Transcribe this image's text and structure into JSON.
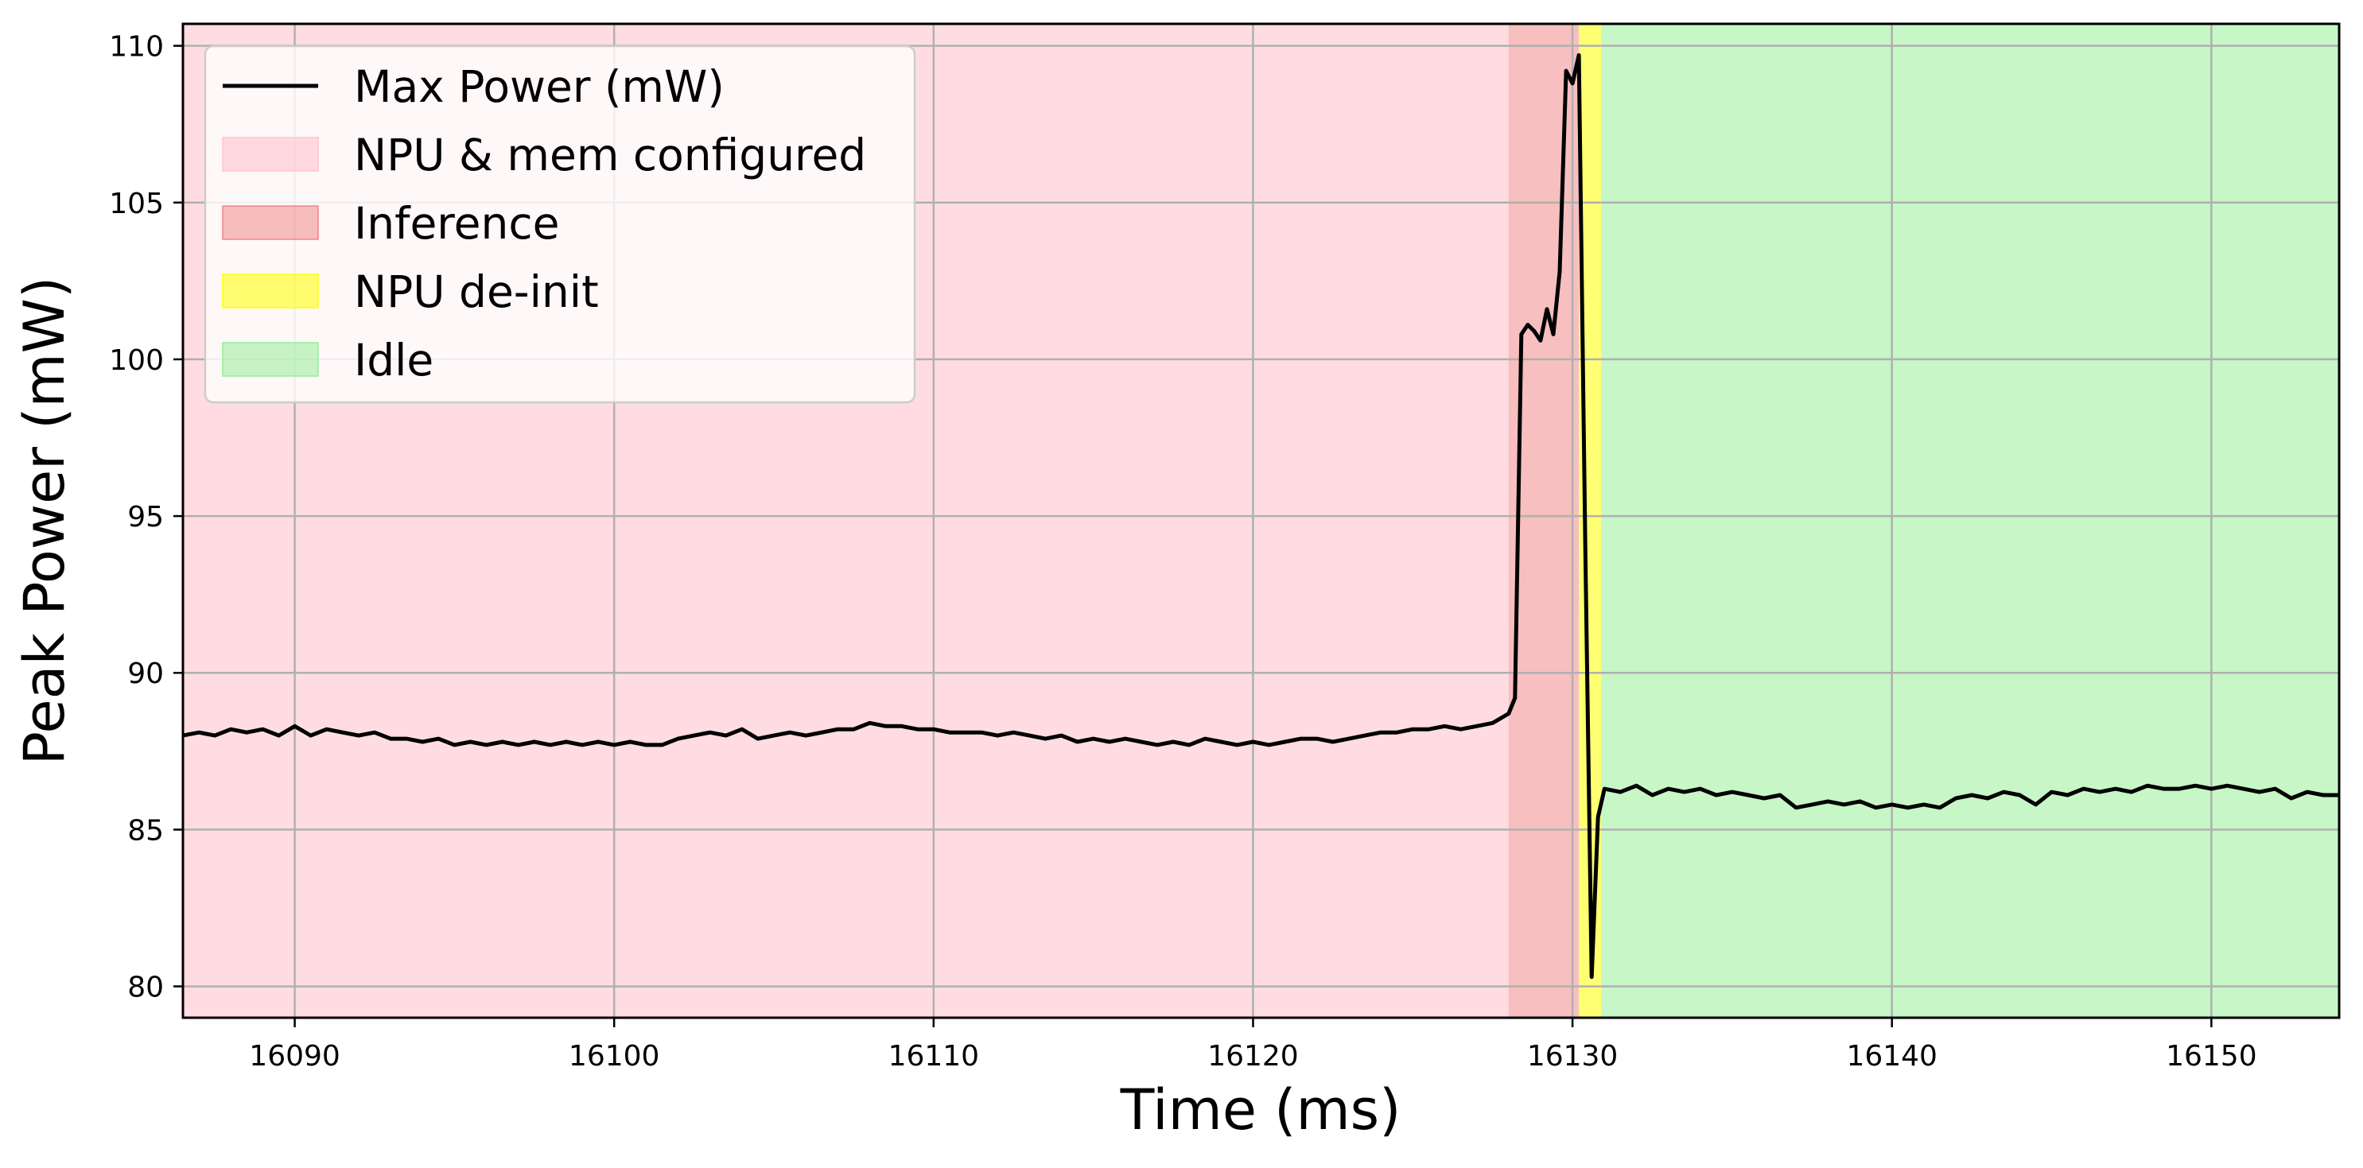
{
  "chart_data": {
    "type": "line",
    "title": "",
    "xlabel": "Time (ms)",
    "ylabel": "Peak Power (mW)",
    "xlim": [
      16086.5,
      16154.0
    ],
    "ylim": [
      79.0,
      110.7
    ],
    "xticks": [
      16090,
      16100,
      16110,
      16120,
      16130,
      16140,
      16150
    ],
    "yticks": [
      80,
      85,
      90,
      95,
      100,
      105,
      110
    ],
    "grid": true,
    "legend_position": "top-left",
    "regions": [
      {
        "name": "NPU & mem configured",
        "x_start": 16086.5,
        "x_end": 16128.0,
        "color": "#ffc0cb",
        "alpha": 0.55
      },
      {
        "name": "Inference",
        "x_start": 16128.0,
        "x_end": 16130.2,
        "color": "#f08080",
        "alpha": 0.5
      },
      {
        "name": "NPU de-init",
        "x_start": 16130.2,
        "x_end": 16130.9,
        "color": "#ffff00",
        "alpha": 0.55
      },
      {
        "name": "Idle",
        "x_start": 16130.9,
        "x_end": 16154.0,
        "color": "#90ee90",
        "alpha": 0.5
      }
    ],
    "series": [
      {
        "name": "Max Power (mW)",
        "color": "#000000",
        "points": [
          [
            16086.5,
            88.0
          ],
          [
            16087.0,
            88.1
          ],
          [
            16087.5,
            88.0
          ],
          [
            16088.0,
            88.2
          ],
          [
            16088.5,
            88.1
          ],
          [
            16089.0,
            88.2
          ],
          [
            16089.5,
            88.0
          ],
          [
            16090.0,
            88.3
          ],
          [
            16090.5,
            88.0
          ],
          [
            16091.0,
            88.2
          ],
          [
            16091.5,
            88.1
          ],
          [
            16092.0,
            88.0
          ],
          [
            16092.5,
            88.1
          ],
          [
            16093.0,
            87.9
          ],
          [
            16093.5,
            87.9
          ],
          [
            16094.0,
            87.8
          ],
          [
            16094.5,
            87.9
          ],
          [
            16095.0,
            87.7
          ],
          [
            16095.5,
            87.8
          ],
          [
            16096.0,
            87.7
          ],
          [
            16096.5,
            87.8
          ],
          [
            16097.0,
            87.7
          ],
          [
            16097.5,
            87.8
          ],
          [
            16098.0,
            87.7
          ],
          [
            16098.5,
            87.8
          ],
          [
            16099.0,
            87.7
          ],
          [
            16099.5,
            87.8
          ],
          [
            16100.0,
            87.7
          ],
          [
            16100.5,
            87.8
          ],
          [
            16101.0,
            87.7
          ],
          [
            16101.5,
            87.7
          ],
          [
            16102.0,
            87.9
          ],
          [
            16102.5,
            88.0
          ],
          [
            16103.0,
            88.1
          ],
          [
            16103.5,
            88.0
          ],
          [
            16104.0,
            88.2
          ],
          [
            16104.5,
            87.9
          ],
          [
            16105.0,
            88.0
          ],
          [
            16105.5,
            88.1
          ],
          [
            16106.0,
            88.0
          ],
          [
            16106.5,
            88.1
          ],
          [
            16107.0,
            88.2
          ],
          [
            16107.5,
            88.2
          ],
          [
            16108.0,
            88.4
          ],
          [
            16108.5,
            88.3
          ],
          [
            16109.0,
            88.3
          ],
          [
            16109.5,
            88.2
          ],
          [
            16110.0,
            88.2
          ],
          [
            16110.5,
            88.1
          ],
          [
            16111.0,
            88.1
          ],
          [
            16111.5,
            88.1
          ],
          [
            16112.0,
            88.0
          ],
          [
            16112.5,
            88.1
          ],
          [
            16113.0,
            88.0
          ],
          [
            16113.5,
            87.9
          ],
          [
            16114.0,
            88.0
          ],
          [
            16114.5,
            87.8
          ],
          [
            16115.0,
            87.9
          ],
          [
            16115.5,
            87.8
          ],
          [
            16116.0,
            87.9
          ],
          [
            16116.5,
            87.8
          ],
          [
            16117.0,
            87.7
          ],
          [
            16117.5,
            87.8
          ],
          [
            16118.0,
            87.7
          ],
          [
            16118.5,
            87.9
          ],
          [
            16119.0,
            87.8
          ],
          [
            16119.5,
            87.7
          ],
          [
            16120.0,
            87.8
          ],
          [
            16120.5,
            87.7
          ],
          [
            16121.0,
            87.8
          ],
          [
            16121.5,
            87.9
          ],
          [
            16122.0,
            87.9
          ],
          [
            16122.5,
            87.8
          ],
          [
            16123.0,
            87.9
          ],
          [
            16123.5,
            88.0
          ],
          [
            16124.0,
            88.1
          ],
          [
            16124.5,
            88.1
          ],
          [
            16125.0,
            88.2
          ],
          [
            16125.5,
            88.2
          ],
          [
            16126.0,
            88.3
          ],
          [
            16126.5,
            88.2
          ],
          [
            16127.0,
            88.3
          ],
          [
            16127.5,
            88.4
          ],
          [
            16128.0,
            88.7
          ],
          [
            16128.2,
            89.2
          ],
          [
            16128.4,
            100.8
          ],
          [
            16128.6,
            101.1
          ],
          [
            16128.8,
            100.9
          ],
          [
            16129.0,
            100.6
          ],
          [
            16129.2,
            101.6
          ],
          [
            16129.4,
            100.8
          ],
          [
            16129.6,
            102.8
          ],
          [
            16129.8,
            109.2
          ],
          [
            16130.0,
            108.8
          ],
          [
            16130.2,
            109.7
          ],
          [
            16130.4,
            94.0
          ],
          [
            16130.6,
            80.3
          ],
          [
            16130.8,
            85.4
          ],
          [
            16131.0,
            86.3
          ],
          [
            16131.5,
            86.2
          ],
          [
            16132.0,
            86.4
          ],
          [
            16132.5,
            86.1
          ],
          [
            16133.0,
            86.3
          ],
          [
            16133.5,
            86.2
          ],
          [
            16134.0,
            86.3
          ],
          [
            16134.5,
            86.1
          ],
          [
            16135.0,
            86.2
          ],
          [
            16135.5,
            86.1
          ],
          [
            16136.0,
            86.0
          ],
          [
            16136.5,
            86.1
          ],
          [
            16137.0,
            85.7
          ],
          [
            16137.5,
            85.8
          ],
          [
            16138.0,
            85.9
          ],
          [
            16138.5,
            85.8
          ],
          [
            16139.0,
            85.9
          ],
          [
            16139.5,
            85.7
          ],
          [
            16140.0,
            85.8
          ],
          [
            16140.5,
            85.7
          ],
          [
            16141.0,
            85.8
          ],
          [
            16141.5,
            85.7
          ],
          [
            16142.0,
            86.0
          ],
          [
            16142.5,
            86.1
          ],
          [
            16143.0,
            86.0
          ],
          [
            16143.5,
            86.2
          ],
          [
            16144.0,
            86.1
          ],
          [
            16144.5,
            85.8
          ],
          [
            16145.0,
            86.2
          ],
          [
            16145.5,
            86.1
          ],
          [
            16146.0,
            86.3
          ],
          [
            16146.5,
            86.2
          ],
          [
            16147.0,
            86.3
          ],
          [
            16147.5,
            86.2
          ],
          [
            16148.0,
            86.4
          ],
          [
            16148.5,
            86.3
          ],
          [
            16149.0,
            86.3
          ],
          [
            16149.5,
            86.4
          ],
          [
            16150.0,
            86.3
          ],
          [
            16150.5,
            86.4
          ],
          [
            16151.0,
            86.3
          ],
          [
            16151.5,
            86.2
          ],
          [
            16152.0,
            86.3
          ],
          [
            16152.5,
            86.0
          ],
          [
            16153.0,
            86.2
          ],
          [
            16153.5,
            86.1
          ],
          [
            16154.0,
            86.1
          ]
        ]
      }
    ]
  },
  "legend": {
    "items": [
      {
        "label": "Max Power (mW)",
        "kind": "line",
        "color": "#000000"
      },
      {
        "label": "NPU & mem configured",
        "kind": "patch",
        "color": "#ffc0cb",
        "alpha": 0.55
      },
      {
        "label": "Inference",
        "kind": "patch",
        "color": "#f08080",
        "alpha": 0.5
      },
      {
        "label": "NPU de-init",
        "kind": "patch",
        "color": "#ffff00",
        "alpha": 0.55
      },
      {
        "label": "Idle",
        "kind": "patch",
        "color": "#90ee90",
        "alpha": 0.5
      }
    ]
  }
}
